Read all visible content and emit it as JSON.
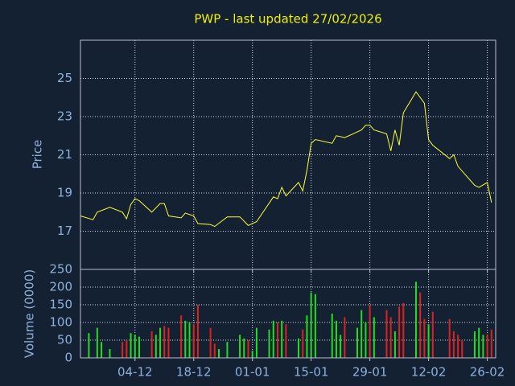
{
  "chart_data": [
    {
      "type": "line",
      "title": "PWP - last updated 27/02/2026",
      "ylabel": "Price",
      "xlim": [
        0,
        99
      ],
      "xticks": [
        {
          "value": 13,
          "label": "04-12"
        },
        {
          "value": 27,
          "label": "18-12"
        },
        {
          "value": 41,
          "label": "01-01"
        },
        {
          "value": 55,
          "label": "15-01"
        },
        {
          "value": 69,
          "label": "29-01"
        },
        {
          "value": 83,
          "label": "12-02"
        },
        {
          "value": 97,
          "label": "26-02"
        }
      ],
      "x": [
        0,
        3,
        4,
        7,
        10,
        11,
        12,
        13,
        14,
        17,
        19,
        20,
        21,
        24,
        25,
        27,
        28,
        31,
        32,
        35,
        38,
        40,
        42,
        46,
        47,
        48,
        49,
        52,
        53,
        54,
        55,
        56,
        60,
        61,
        63,
        65,
        67,
        68,
        69,
        70,
        73,
        74,
        75,
        76,
        77,
        80,
        82,
        83,
        84,
        88,
        89,
        90,
        94,
        95,
        97,
        98
      ],
      "values": [
        17.8,
        17.6,
        18.0,
        18.25,
        18.0,
        17.65,
        18.4,
        18.7,
        18.6,
        18.0,
        18.45,
        18.45,
        17.8,
        17.7,
        17.95,
        17.8,
        17.4,
        17.35,
        17.25,
        17.75,
        17.75,
        17.3,
        17.5,
        18.8,
        18.7,
        19.3,
        18.85,
        19.55,
        19.1,
        20.2,
        21.6,
        21.8,
        21.6,
        22.0,
        21.9,
        22.1,
        22.3,
        22.55,
        22.55,
        22.3,
        22.1,
        21.2,
        22.3,
        21.5,
        23.2,
        24.3,
        23.7,
        21.8,
        21.5,
        20.8,
        21.0,
        20.4,
        19.4,
        19.3,
        19.55,
        18.5
      ],
      "color": "#ffff33",
      "ylim": [
        15,
        27
      ],
      "yticks": [
        17,
        19,
        21,
        23,
        25
      ],
      "grid": true
    },
    {
      "type": "bar",
      "ylabel": "Volume (0000)",
      "ylim": [
        0,
        250
      ],
      "yticks": [
        0,
        50,
        100,
        150,
        200,
        250
      ],
      "grid": true,
      "series": [
        {
          "color": "#22dd22",
          "x": [
            2,
            4,
            5,
            7,
            12,
            13,
            14,
            18,
            19,
            25,
            26,
            33,
            35,
            38,
            39,
            41,
            42,
            45,
            46,
            48,
            52,
            54,
            55,
            56,
            60,
            61,
            62,
            66,
            67,
            68,
            70,
            75,
            80,
            83,
            94,
            95,
            96
          ],
          "values": [
            70,
            85,
            45,
            25,
            70,
            65,
            60,
            65,
            85,
            105,
            100,
            25,
            45,
            65,
            55,
            20,
            85,
            80,
            105,
            105,
            55,
            120,
            185,
            180,
            125,
            105,
            65,
            85,
            135,
            100,
            115,
            75,
            215,
            95,
            75,
            85,
            65
          ]
        },
        {
          "color": "#dd2222",
          "x": [
            10,
            11,
            17,
            20,
            21,
            24,
            27,
            28,
            31,
            32,
            40,
            47,
            49,
            53,
            63,
            69,
            73,
            74,
            76,
            77,
            81,
            82,
            84,
            88,
            89,
            90,
            91,
            97,
            98
          ],
          "values": [
            45,
            50,
            75,
            90,
            85,
            120,
            95,
            150,
            85,
            40,
            50,
            100,
            95,
            80,
            115,
            150,
            135,
            115,
            145,
            155,
            185,
            110,
            130,
            110,
            75,
            65,
            50,
            65,
            80
          ]
        }
      ]
    }
  ]
}
